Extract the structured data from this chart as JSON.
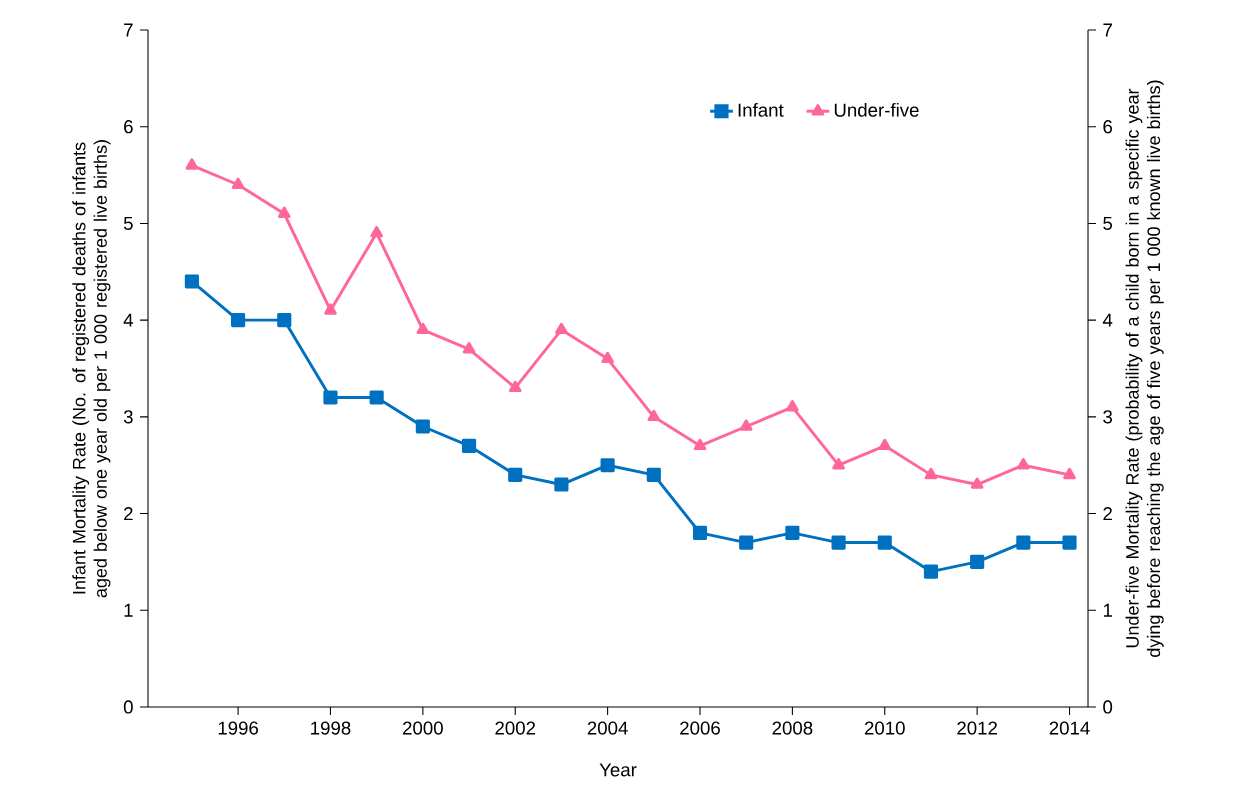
{
  "chart_data": {
    "type": "line",
    "xlabel": "Year",
    "ylabel": "Infant Mortality Rate (No. of registered deaths of infants aged below one year old per 1 000 registered live births)",
    "y2label": "Under-five Mortality Rate (probability of a child born in a specific year dying before reaching the age of five years per 1 000 known live births)",
    "x": [
      1995,
      1996,
      1997,
      1998,
      1999,
      2000,
      2001,
      2002,
      2003,
      2004,
      2005,
      2006,
      2007,
      2008,
      2009,
      2010,
      2011,
      2012,
      2013,
      2014
    ],
    "series": [
      {
        "name": "Infant",
        "color": "#0070c0",
        "marker": "square",
        "values": [
          4.4,
          4.0,
          4.0,
          3.2,
          3.2,
          2.9,
          2.7,
          2.4,
          2.3,
          2.5,
          2.4,
          1.8,
          1.7,
          1.8,
          1.7,
          1.7,
          1.4,
          1.5,
          1.7,
          1.7
        ]
      },
      {
        "name": "Under-five",
        "color": "#ff6699",
        "marker": "triangle",
        "axis": "y2",
        "values": [
          5.6,
          5.4,
          5.1,
          4.1,
          4.9,
          3.9,
          3.7,
          3.3,
          3.9,
          3.6,
          3.0,
          2.7,
          2.9,
          3.1,
          2.5,
          2.7,
          2.4,
          2.3,
          2.5,
          2.4
        ]
      }
    ],
    "xlim": [
      1994.05,
      2014.4
    ],
    "xticks": [
      1996,
      1998,
      2000,
      2002,
      2004,
      2006,
      2008,
      2010,
      2012,
      2014
    ],
    "ylim": [
      0,
      7
    ],
    "yticks": [
      0,
      1,
      2,
      3,
      4,
      5,
      6,
      7
    ],
    "y2lim": [
      0,
      7
    ],
    "y2ticks": [
      0,
      1,
      2,
      3,
      4,
      5,
      6,
      7
    ],
    "legend": "top",
    "grid": false
  }
}
